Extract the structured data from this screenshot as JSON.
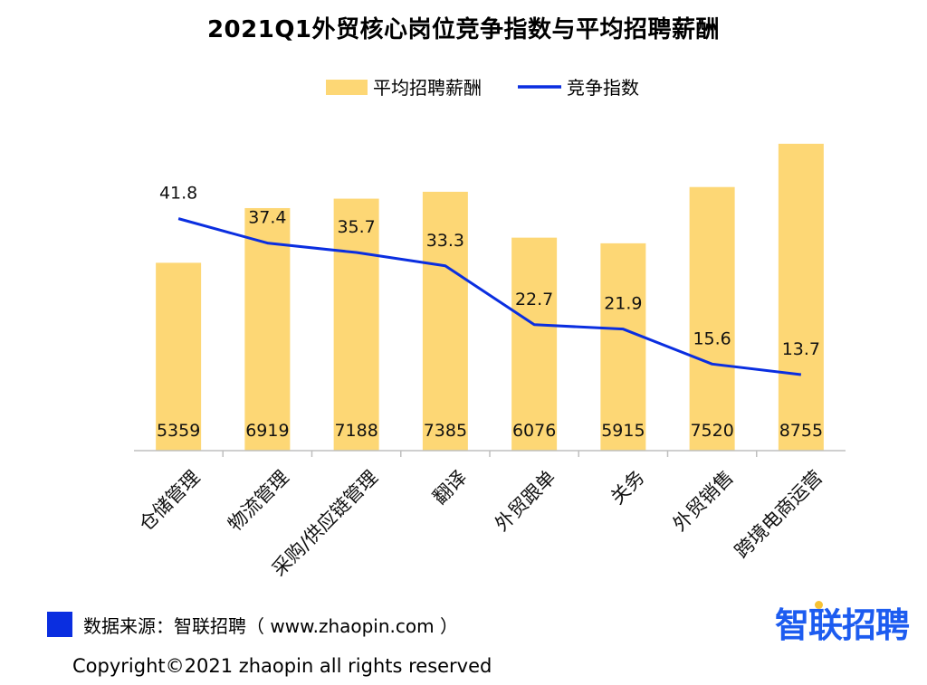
{
  "title": "2021Q1外贸核心岗位竞争指数与平均招聘薪酬",
  "legend": {
    "bar_label": "平均招聘薪酬",
    "line_label": "竞争指数"
  },
  "colors": {
    "bar": "#fdd775",
    "line": "#0a2ee0",
    "source_square": "#0a2ee0",
    "brand": "#1d5cf0",
    "brand_dot": "#f7c233"
  },
  "chart_data": {
    "type": "bar",
    "categories": [
      "仓储管理",
      "物流管理",
      "采购/供应链管理",
      "翻译",
      "外贸跟单",
      "关务",
      "外贸销售",
      "跨境电商运营"
    ],
    "series": [
      {
        "name": "平均招聘薪酬",
        "type": "bar",
        "values": [
          5359,
          6919,
          7188,
          7385,
          6076,
          5915,
          7520,
          8755
        ]
      },
      {
        "name": "竞争指数",
        "type": "line",
        "values": [
          41.8,
          37.4,
          35.7,
          33.3,
          22.7,
          21.9,
          15.6,
          13.7
        ]
      }
    ],
    "bar_axis_range": [
      0,
      9500
    ],
    "line_axis_range": [
      0,
      60
    ],
    "grid": false,
    "legend_position": "top-center"
  },
  "footer": {
    "source": "数据来源：智联招聘（ www.zhaopin.com ）",
    "copyright": "Copyright©2021 zhaopin all rights reserved",
    "brand": "智联招聘"
  }
}
